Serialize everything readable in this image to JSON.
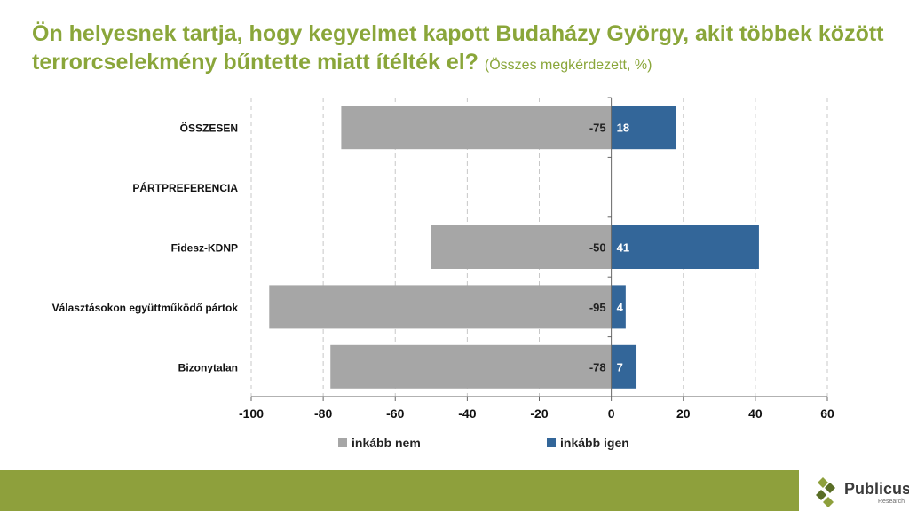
{
  "title_main": "Ön helyesnek tartja, hogy kegyelmet kapott Budaházy György, akit többek között terrorcselekmény bűntette miatt ítélték el?",
  "title_note": "(Összes megkérdezett, %)",
  "logo": {
    "name": "Publicus",
    "sub": "Research"
  },
  "colors": {
    "title": "#8aa63a",
    "footer": "#8ea03c",
    "nem": "#a6a6a6",
    "igen": "#336699"
  },
  "chart_data": {
    "type": "bar",
    "orientation": "horizontal",
    "categories": [
      "ÖSSZESEN",
      "PÁRTPREFERENCIA",
      "Fidesz-KDNP",
      "Választásokon együttműködő pártok",
      "Bizonytalan"
    ],
    "series": [
      {
        "name": "inkább nem",
        "values": [
          -75,
          null,
          -50,
          -95,
          -78
        ],
        "color": "#a6a6a6"
      },
      {
        "name": "inkább igen",
        "values": [
          18,
          null,
          41,
          4,
          7
        ],
        "color": "#336699"
      }
    ],
    "xlim": [
      -100,
      60
    ],
    "xticks": [
      -100,
      -80,
      -60,
      -40,
      -20,
      0,
      20,
      40,
      60
    ],
    "grid": true,
    "legend": "bottom"
  }
}
